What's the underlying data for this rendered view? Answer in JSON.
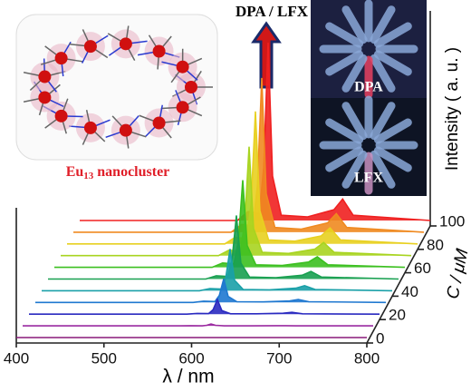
{
  "chart_data": {
    "type": "waterfall",
    "xlabel": "λ / nm",
    "ylabel": "Intensity ( a. u. )",
    "zlabel": "C / μM",
    "xlim": [
      400,
      800
    ],
    "xticks": [
      400,
      500,
      600,
      700,
      800
    ],
    "ylim": [
      0,
      100
    ],
    "zlim": [
      0,
      100
    ],
    "zticks": [
      0,
      20,
      40,
      60,
      80,
      100
    ],
    "x": [
      400,
      580,
      592,
      605,
      610,
      615,
      620,
      630,
      660,
      690,
      700,
      712,
      800
    ],
    "series": [
      {
        "z": 0,
        "color": "#8a1a7a",
        "values": [
          0,
          0,
          0,
          0,
          0,
          0,
          0,
          0,
          0,
          0,
          0,
          0,
          0
        ]
      },
      {
        "z": 10,
        "color": "#9a2aa0",
        "values": [
          0,
          0,
          0.1,
          0,
          0.3,
          1,
          0.3,
          0,
          0,
          0.1,
          0.1,
          0,
          0
        ]
      },
      {
        "z": 20,
        "color": "#2a2ac0",
        "values": [
          0,
          0,
          0.4,
          0.3,
          2.4,
          8,
          2,
          0.2,
          0.2,
          0.5,
          1,
          0.2,
          0
        ]
      },
      {
        "z": 30,
        "color": "#1f78d0",
        "values": [
          0,
          0,
          0.7,
          0.5,
          3.9,
          13,
          3.3,
          0.4,
          0.3,
          0.8,
          1.6,
          0.4,
          0
        ]
      },
      {
        "z": 40,
        "color": "#1aa0a8",
        "values": [
          0,
          0,
          1.2,
          0.9,
          6.9,
          23,
          5.8,
          0.7,
          0.5,
          1.4,
          2.8,
          0.7,
          0
        ]
      },
      {
        "z": 50,
        "color": "#18a050",
        "values": [
          0,
          0,
          1.8,
          1.4,
          10.5,
          35,
          8.8,
          1.1,
          0.7,
          2.1,
          4.2,
          1.1,
          0
        ]
      },
      {
        "z": 60,
        "color": "#3cc020",
        "values": [
          0,
          0,
          2.4,
          1.9,
          14.4,
          48,
          12,
          1.4,
          1,
          2.9,
          5.8,
          1.4,
          0
        ]
      },
      {
        "z": 70,
        "color": "#a8d420",
        "values": [
          0,
          0,
          3,
          2.4,
          18,
          60,
          15,
          1.8,
          1.2,
          3.6,
          7.2,
          1.8,
          0
        ]
      },
      {
        "z": 80,
        "color": "#e8d020",
        "values": [
          0,
          0,
          3.7,
          2.9,
          21.9,
          73,
          18.3,
          2.2,
          1.5,
          4.4,
          8.8,
          2.2,
          0
        ]
      },
      {
        "z": 90,
        "color": "#f08a20",
        "values": [
          0,
          0,
          4.3,
          3.4,
          25.5,
          85,
          21.3,
          2.6,
          1.7,
          5.1,
          10.2,
          2.6,
          0
        ]
      },
      {
        "z": 100,
        "color": "#f02020",
        "values": [
          0,
          0,
          4.9,
          3.9,
          29.4,
          98,
          24.5,
          2.9,
          2,
          5.9,
          11.8,
          2.9,
          0
        ]
      }
    ],
    "annotations": {
      "arrow_label": "DPA / LFX",
      "cluster_label": [
        "Eu",
        "13",
        " nanocluster"
      ],
      "photo_top": "DPA",
      "photo_bottom": "LFX"
    }
  }
}
